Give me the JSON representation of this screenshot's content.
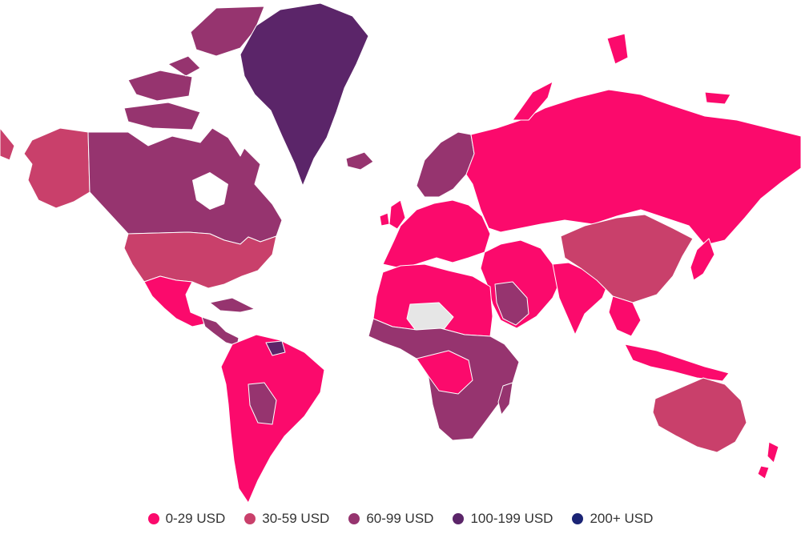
{
  "colors": {
    "background": "#ffffff",
    "no_data": "#e6e6e6",
    "tier_0_29": "#fb0a6c",
    "tier_30_59": "#c9406b",
    "tier_60_99": "#96346f",
    "tier_100_199": "#5b2569",
    "tier_200_plus": "#1b2475"
  },
  "legend": {
    "items": [
      {
        "label": "0-29 USD",
        "color": "#fb0a6c"
      },
      {
        "label": "30-59 USD",
        "color": "#c9406b"
      },
      {
        "label": "60-99 USD",
        "color": "#96346f"
      },
      {
        "label": "100-199 USD",
        "color": "#5b2569"
      },
      {
        "label": "200+ USD",
        "color": "#1b2475"
      }
    ]
  },
  "regions": [
    {
      "name": "alaska",
      "tier": "30-59 USD"
    },
    {
      "name": "canada",
      "tier": "60-99 USD"
    },
    {
      "name": "greenland",
      "tier": "100-199 USD"
    },
    {
      "name": "usa",
      "tier": "30-59 USD"
    },
    {
      "name": "mexico",
      "tier": "0-29 USD"
    },
    {
      "name": "central-america",
      "tier": "60-99 USD"
    },
    {
      "name": "south-america",
      "tier": "0-29 USD"
    },
    {
      "name": "russia",
      "tier": "0-29 USD"
    },
    {
      "name": "scandinavia",
      "tier": "60-99 USD"
    },
    {
      "name": "europe",
      "tier": "0-29 USD"
    },
    {
      "name": "north-africa",
      "tier": "0-29 USD"
    },
    {
      "name": "sub-saharan-africa",
      "tier": "60-99 USD"
    },
    {
      "name": "middle-east",
      "tier": "0-29 USD"
    },
    {
      "name": "india",
      "tier": "0-29 USD"
    },
    {
      "name": "china",
      "tier": "30-59 USD"
    },
    {
      "name": "southeast-asia",
      "tier": "0-29 USD"
    },
    {
      "name": "australia",
      "tier": "30-59 USD"
    },
    {
      "name": "new-zealand",
      "tier": "0-29 USD"
    }
  ]
}
